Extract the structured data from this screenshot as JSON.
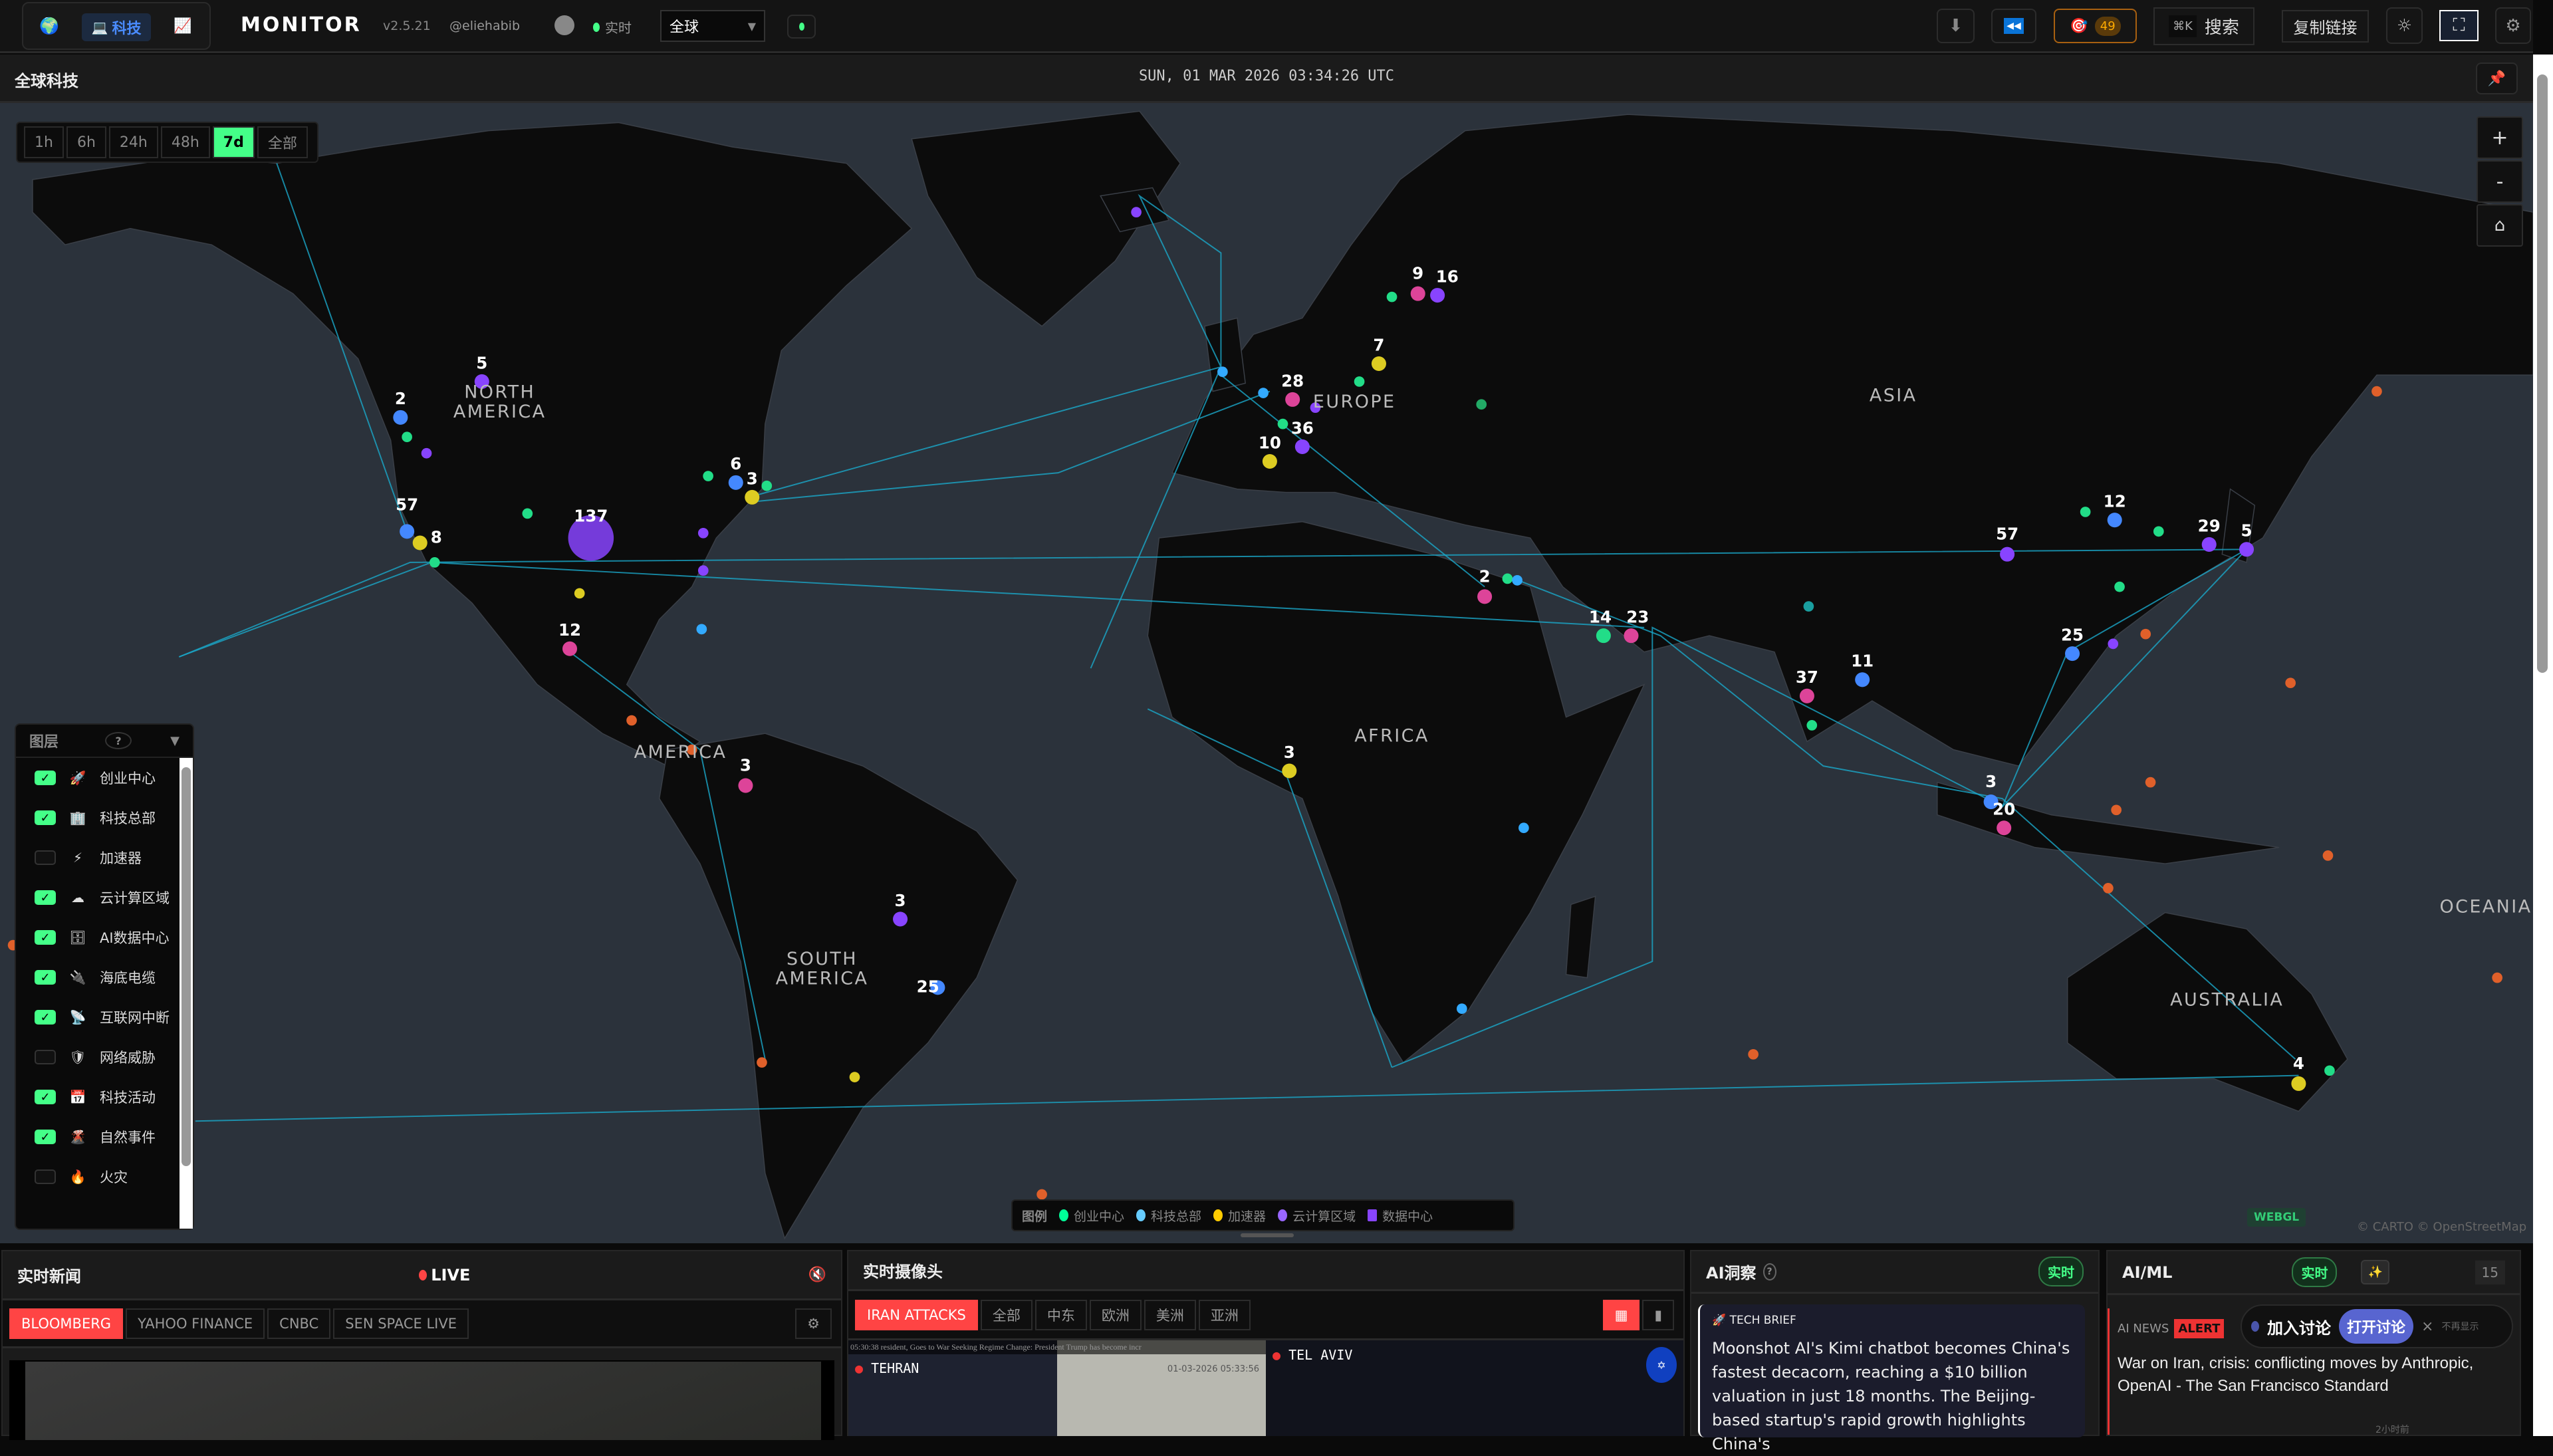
{
  "topbar": {
    "variants": [
      {
        "icon": "globe-icon",
        "label": ""
      },
      {
        "icon": "laptop-icon",
        "label": "科技"
      },
      {
        "icon": "chart-icon",
        "label": ""
      }
    ],
    "brand": "MONITOR",
    "version": "v2.5.21",
    "author": "@eliehabib",
    "live_label": "实时",
    "region_select": "全球",
    "alerts_count": "49",
    "search_shortcut": "⌘K",
    "search_label": "搜索",
    "copy_link": "复制链接"
  },
  "mapbar": {
    "title": "全球科技",
    "datetime": "SUN, 01 MAR 2026 03:34:26 UTC"
  },
  "time_filters": [
    {
      "label": "1h",
      "active": false
    },
    {
      "label": "6h",
      "active": false
    },
    {
      "label": "24h",
      "active": false
    },
    {
      "label": "48h",
      "active": false
    },
    {
      "label": "7d",
      "active": true
    },
    {
      "label": "全部",
      "active": false
    }
  ],
  "zoom_controls": {
    "in": "+",
    "out": "-",
    "home": "⌂"
  },
  "layers": {
    "title": "图层",
    "help": "?",
    "items": [
      {
        "label": "创业中心",
        "icon": "🚀",
        "checked": true
      },
      {
        "label": "科技总部",
        "icon": "🏢",
        "checked": true
      },
      {
        "label": "加速器",
        "icon": "⚡",
        "checked": false
      },
      {
        "label": "云计算区域",
        "icon": "☁",
        "checked": true
      },
      {
        "label": "AI数据中心",
        "icon": "🗄",
        "checked": true
      },
      {
        "label": "海底电缆",
        "icon": "🔌",
        "checked": true
      },
      {
        "label": "互联网中断",
        "icon": "📡",
        "checked": true
      },
      {
        "label": "网络威胁",
        "icon": "🛡",
        "checked": false
      },
      {
        "label": "科技活动",
        "icon": "📅",
        "checked": true
      },
      {
        "label": "自然事件",
        "icon": "🌋",
        "checked": true
      },
      {
        "label": "火灾",
        "icon": "🔥",
        "checked": false
      }
    ]
  },
  "regions": [
    "NORTH AMERICA",
    "EUROPE",
    "ASIA",
    "AFRICA",
    "AMERICA",
    "SOUTH AMERICA",
    "AUSTRALIA",
    "OCEANIA"
  ],
  "markers": [
    "5",
    "2",
    "57",
    "8",
    "137",
    "6",
    "3",
    "12",
    "3",
    "3",
    "25",
    "9",
    "16",
    "7",
    "28",
    "36",
    "10",
    "2",
    "14",
    "23",
    "3",
    "37",
    "11",
    "57",
    "12",
    "29",
    "5",
    "25",
    "3",
    "20",
    "4"
  ],
  "legend": {
    "title": "图例",
    "items": [
      {
        "label": "创业中心",
        "color": "#00ff99"
      },
      {
        "label": "科技总部",
        "color": "#66ccff"
      },
      {
        "label": "加速器",
        "color": "#ffcc00"
      },
      {
        "label": "云计算区域",
        "color": "#9966ff"
      },
      {
        "label": "数据中心",
        "color": "#8844ff"
      }
    ]
  },
  "map_badges": {
    "renderer": "WEBGL",
    "attribution": "© CARTO © OpenStreetMap"
  },
  "news": {
    "title": "实时新闻",
    "live": "LIVE",
    "channels": [
      {
        "label": "BLOOMBERG",
        "active": true
      },
      {
        "label": "YAHOO FINANCE",
        "active": false
      },
      {
        "label": "CNBC",
        "active": false
      },
      {
        "label": "SEN SPACE LIVE",
        "active": false
      }
    ]
  },
  "cams": {
    "title": "实时摄像头",
    "filters": [
      {
        "label": "IRAN ATTACKS",
        "active": true
      },
      {
        "label": "全部",
        "active": false
      },
      {
        "label": "中东",
        "active": false
      },
      {
        "label": "欧洲",
        "active": false
      },
      {
        "label": "美洲",
        "active": false
      },
      {
        "label": "亚洲",
        "active": false
      }
    ],
    "feeds": [
      {
        "city": "TEHRAN",
        "ticker": "05:30:38  resident, Goes to War Seeking Regime Change: President Trump has become incr",
        "stamp": "01-03-2026 05:33:56"
      },
      {
        "city": "TEL AVIV"
      }
    ]
  },
  "insight": {
    "title": "AI洞察",
    "help": "?",
    "badge": "实时",
    "card_tag": "TECH BRIEF",
    "card_text": "Moonshot AI's Kimi chatbot becomes China's fastest decacorn, reaching a $10 billion valuation in just 18 months. The Beijing-based startup's rapid growth highlights China's"
  },
  "aiml": {
    "title": "AI/ML",
    "badge": "实时",
    "count": "15",
    "source": "AI NEWS",
    "alert": "ALERT",
    "headline": "War on Iran, crisis: conflicting moves by Anthropic, OpenAI - The San Francisco Standard",
    "time": "2小时前",
    "popup": {
      "join": "加入讨论",
      "open": "打开讨论",
      "close": "×",
      "dismiss": "不再显示"
    }
  }
}
